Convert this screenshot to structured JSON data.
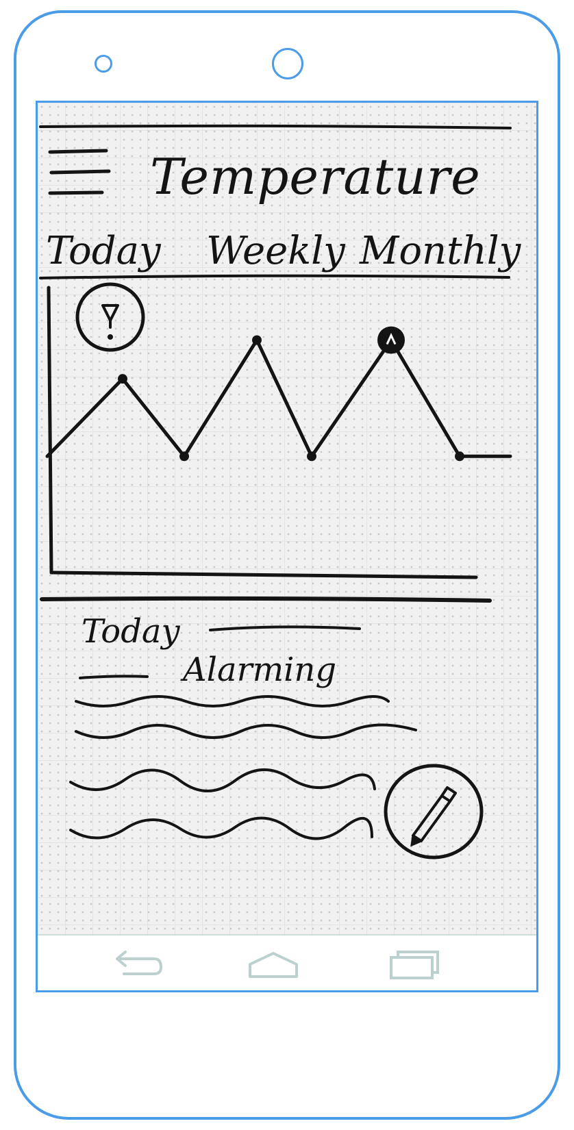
{
  "app": {
    "title": "Temperature"
  },
  "tabs": [
    {
      "label": "Today"
    },
    {
      "label": "Weekly"
    },
    {
      "label": "Monthly"
    }
  ],
  "alert": {
    "icon": "exclamation-icon"
  },
  "chart_data": {
    "type": "line",
    "x": [
      0,
      1,
      2,
      3,
      4,
      5,
      6,
      7
    ],
    "y": [
      3,
      5,
      3,
      6,
      3,
      6,
      3,
      3
    ],
    "highlighted_index": 5,
    "grid": true
  },
  "summary": {
    "heading": "Today",
    "status": "Alarming"
  },
  "fab": {
    "icon": "pencil-icon"
  },
  "nav": {
    "back_icon": "back-icon",
    "home_icon": "home-icon",
    "recents_icon": "recents-icon"
  },
  "colors": {
    "frame": "#4a9be8",
    "ink": "#141414",
    "nav_icons": "#bdd0d0"
  }
}
